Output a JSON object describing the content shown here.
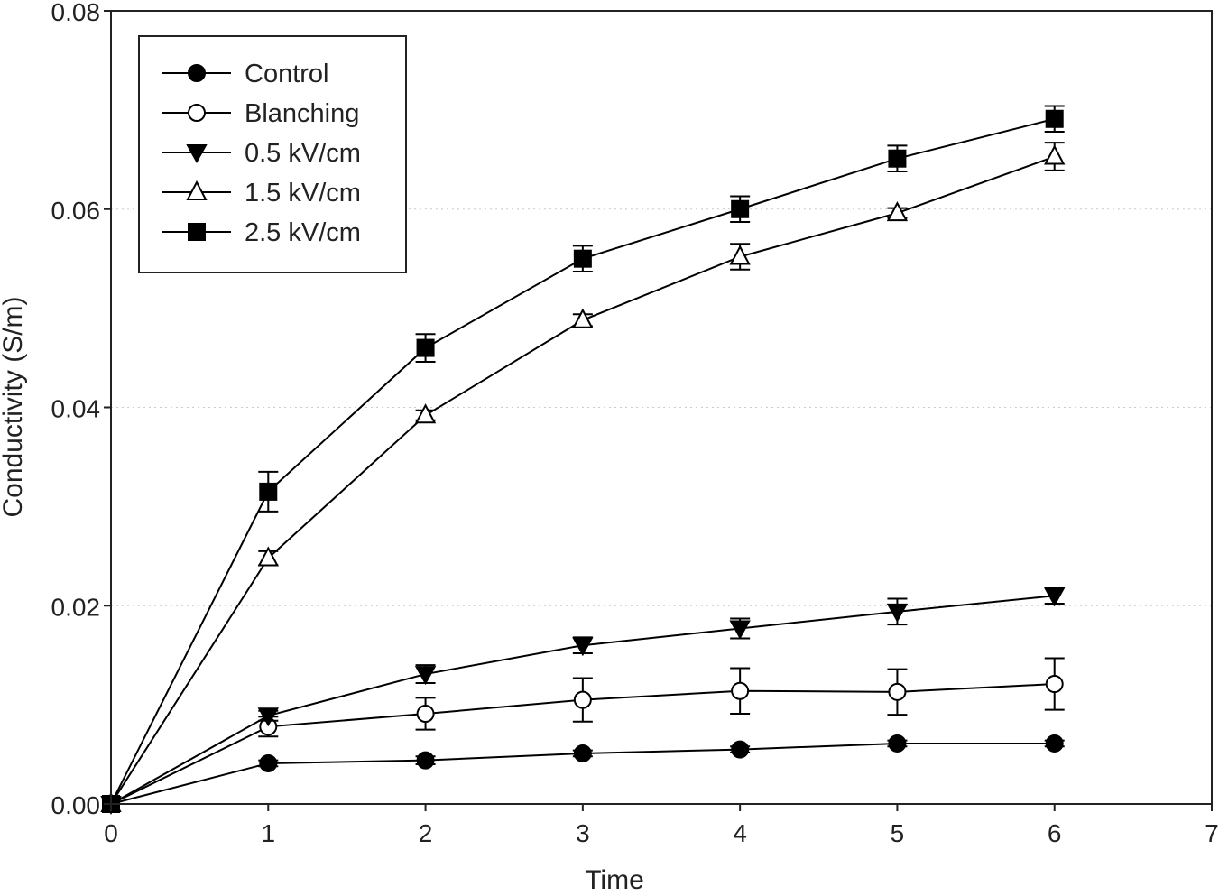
{
  "chart_data": {
    "type": "line",
    "title": "",
    "xlabel": "Time",
    "ylabel": "Conductivity (S/m)",
    "xlim": [
      0,
      7
    ],
    "ylim": [
      0,
      0.08
    ],
    "x_ticks": [
      "0",
      "1",
      "2",
      "3",
      "4",
      "5",
      "6",
      "7"
    ],
    "y_ticks": [
      "0.00",
      "0.02",
      "0.04",
      "0.06",
      "0.08"
    ],
    "grid": true,
    "legend_position": "top-left",
    "x": [
      0,
      1,
      2,
      3,
      4,
      5,
      6
    ],
    "series": [
      {
        "name": "Control",
        "marker": "filled-circle",
        "values": [
          0,
          0.0041,
          0.0044,
          0.0051,
          0.0055,
          0.0061,
          0.0061
        ],
        "errors": [
          0,
          0.0003,
          0.0004,
          0.0003,
          0.0003,
          0.0003,
          0.0003
        ]
      },
      {
        "name": "Blanching",
        "marker": "open-circle",
        "values": [
          0,
          0.0078,
          0.0091,
          0.0105,
          0.0114,
          0.0113,
          0.0121
        ],
        "errors": [
          0,
          0.001,
          0.0016,
          0.0022,
          0.0023,
          0.0023,
          0.0026
        ]
      },
      {
        "name": "0.5 kV/cm",
        "marker": "filled-triangle-down",
        "values": [
          0,
          0.0089,
          0.0131,
          0.016,
          0.0177,
          0.0194,
          0.021
        ],
        "errors": [
          0,
          0.0005,
          0.0009,
          0.0008,
          0.001,
          0.0013,
          0.0008
        ]
      },
      {
        "name": "1.5 kV/cm",
        "marker": "open-triangle-up",
        "values": [
          0,
          0.0248,
          0.0392,
          0.0488,
          0.0552,
          0.0596,
          0.0653
        ],
        "errors": [
          0,
          0.0007,
          0.0005,
          0.0006,
          0.0013,
          0.0005,
          0.0014
        ]
      },
      {
        "name": "2.5 kV/cm",
        "marker": "filled-square",
        "values": [
          0,
          0.0315,
          0.046,
          0.055,
          0.06,
          0.0651,
          0.0691
        ],
        "errors": [
          0,
          0.002,
          0.0014,
          0.0013,
          0.0013,
          0.0013,
          0.0013
        ]
      }
    ]
  }
}
